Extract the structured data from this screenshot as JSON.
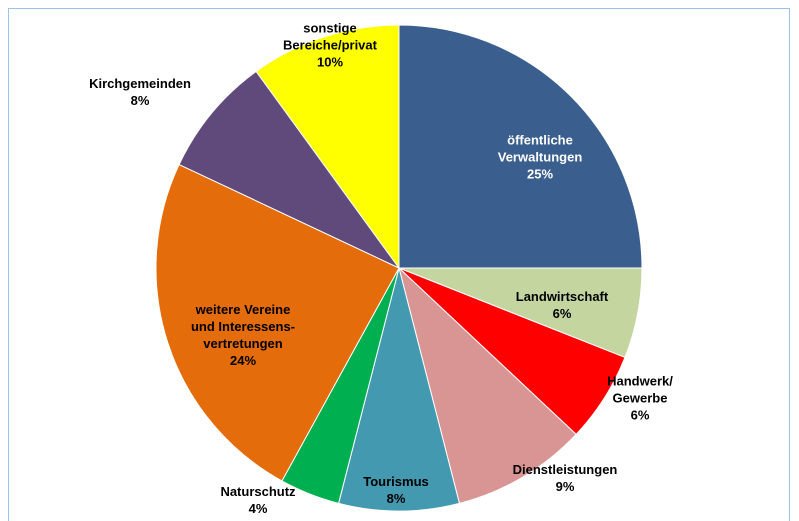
{
  "chart_data": {
    "type": "pie",
    "categories": [
      "öffentliche\nVerwaltungen",
      "Landwirtschaft",
      "Handwerk/\nGewerbe",
      "Dienstleistungen",
      "Tourismus",
      "Naturschutz",
      "weitere Vereine\nund Interessens-\nvertretungen",
      "Kirchgemeinden",
      "sonstige\nBereiche/privat"
    ],
    "values": [
      25,
      6,
      6,
      9,
      8,
      4,
      24,
      8,
      10
    ],
    "value_labels": [
      "25%",
      "6%",
      "6%",
      "9%",
      "8%",
      "4%",
      "24%",
      "8%",
      "10%"
    ],
    "colors": [
      "#3a5f8f",
      "#c4d59f",
      "#ff0000",
      "#d99594",
      "#4299b0",
      "#00b050",
      "#e46c0a",
      "#604a7b",
      "#ffff00"
    ],
    "label_colors": [
      "#ffffff",
      "#000000",
      "#000000",
      "#000000",
      "#000000",
      "#000000",
      "#000000",
      "#000000",
      "#000000"
    ]
  }
}
